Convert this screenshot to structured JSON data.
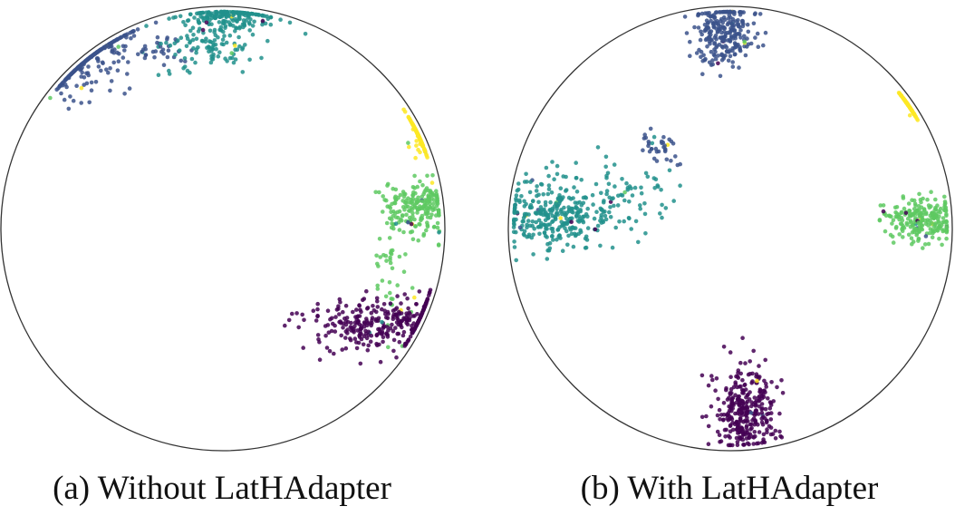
{
  "figure": {
    "captions": [
      "(a) Without LatHAdapter",
      "(b) With LatHAdapter"
    ]
  },
  "colors": {
    "disk_edge": "#333333",
    "class_0": "#440154",
    "class_1": "#3b528b",
    "class_2": "#21918c",
    "class_3": "#5ec962",
    "class_4": "#fde725"
  },
  "chart_data": [
    {
      "type": "scatter",
      "title": "(a) Without LatHAdapter",
      "coordinate_space": "Poincare disk",
      "xlim": [
        -1,
        1
      ],
      "ylim": [
        -1,
        1
      ],
      "grid": false,
      "legend": "none",
      "clusters": [
        {
          "class": 0,
          "center": [
            0.72,
            -0.43
          ],
          "spread": [
            0.18,
            0.06
          ],
          "count": 330
        },
        {
          "class": 1,
          "center": [
            -0.62,
            0.82
          ],
          "spread": [
            0.12,
            0.11
          ],
          "count": 260
        },
        {
          "class": 1,
          "center": [
            -0.28,
            0.8
          ],
          "spread": [
            0.06,
            0.03
          ],
          "count": 30
        },
        {
          "class": 2,
          "center": [
            0.02,
            0.96
          ],
          "spread": [
            0.12,
            0.04
          ],
          "count": 180
        },
        {
          "class": 2,
          "center": [
            -0.05,
            0.84
          ],
          "spread": [
            0.1,
            0.07
          ],
          "count": 110
        },
        {
          "class": 3,
          "center": [
            0.88,
            0.1
          ],
          "spread": [
            0.08,
            0.06
          ],
          "count": 200
        },
        {
          "class": 3,
          "center": [
            0.75,
            -0.15
          ],
          "spread": [
            0.04,
            0.14
          ],
          "count": 45
        },
        {
          "class": 4,
          "center": [
            0.91,
            0.43
          ],
          "spread": [
            0.025,
            0.05
          ],
          "count": 130
        }
      ]
    },
    {
      "type": "scatter",
      "title": "(b) With LatHAdapter",
      "coordinate_space": "Poincare disk",
      "xlim": [
        -1,
        1
      ],
      "ylim": [
        -1,
        1
      ],
      "grid": false,
      "legend": "none",
      "clusters": [
        {
          "class": 0,
          "center": [
            0.07,
            -0.82
          ],
          "spread": [
            0.07,
            0.1
          ],
          "count": 320
        },
        {
          "class": 1,
          "center": [
            -0.03,
            0.88
          ],
          "spread": [
            0.07,
            0.08
          ],
          "count": 260
        },
        {
          "class": 1,
          "center": [
            -0.32,
            0.37
          ],
          "spread": [
            0.05,
            0.04
          ],
          "count": 35
        },
        {
          "class": 2,
          "center": [
            -0.79,
            0.06
          ],
          "spread": [
            0.13,
            0.08
          ],
          "count": 320
        },
        {
          "class": 2,
          "center": [
            -0.45,
            0.15
          ],
          "spread": [
            0.12,
            0.1
          ],
          "count": 60
        },
        {
          "class": 3,
          "center": [
            0.87,
            0.04
          ],
          "spread": [
            0.08,
            0.05
          ],
          "count": 230
        },
        {
          "class": 4,
          "center": [
            0.86,
            0.6
          ],
          "spread": [
            0.03,
            0.04
          ],
          "count": 100
        }
      ]
    }
  ]
}
